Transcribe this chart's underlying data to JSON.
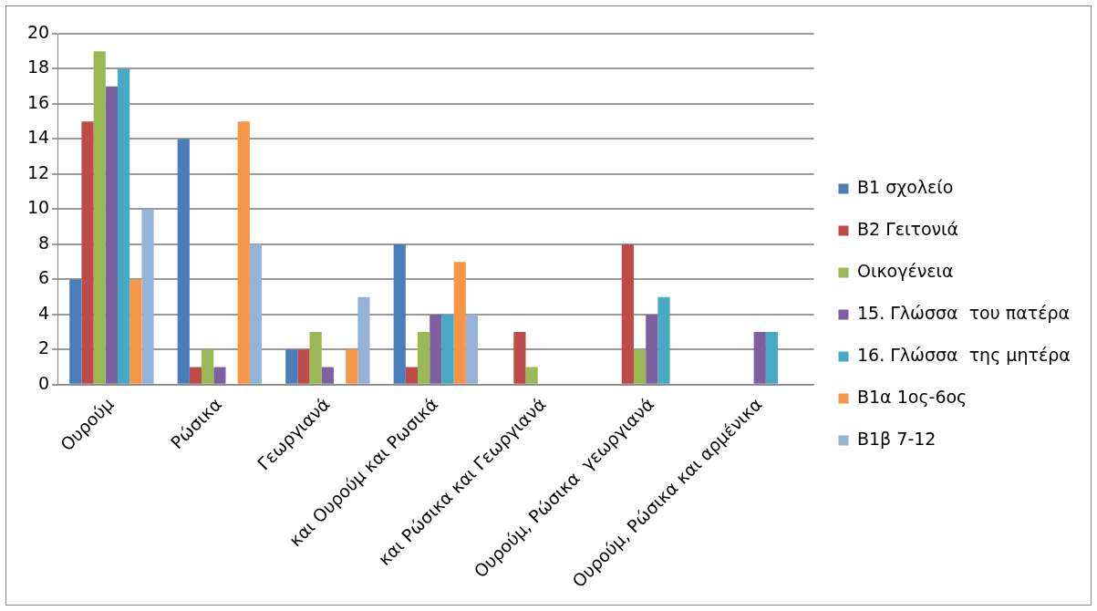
{
  "chart_data": {
    "type": "bar",
    "categories": [
      "Ουρούμ",
      "Ρώσικα",
      "Γεωργιανά",
      "και Ουρούμ και Ρωσικά",
      "και Ρώσικα και Γεωργιανά",
      "Ουρούμ, Ρώσικα  γεωργιανά",
      "Ουρούμ, Ρώσικα και αρμένικα"
    ],
    "series": [
      {
        "name": "Β1 σχολείο",
        "color": "#4a7ebb",
        "values": [
          6,
          14,
          2,
          8,
          0,
          0,
          0
        ]
      },
      {
        "name": "Β2 Γειτονιά",
        "color": "#be4b48",
        "values": [
          15,
          1,
          2,
          1,
          3,
          8,
          0
        ]
      },
      {
        "name": "Οικογένεια",
        "color": "#98b954",
        "values": [
          19,
          2,
          3,
          3,
          1,
          2,
          0
        ]
      },
      {
        "name": "15. Γλώσσα  του πατέρα",
        "color": "#7d60a0",
        "values": [
          17,
          1,
          1,
          4,
          0,
          4,
          3
        ]
      },
      {
        "name": "16. Γλώσσα  της μητέρα",
        "color": "#46aac5",
        "values": [
          18,
          0,
          0,
          4,
          0,
          5,
          3
        ]
      },
      {
        "name": "Β1α 1ος-6ος",
        "color": "#f79646",
        "values": [
          6,
          15,
          2,
          7,
          0,
          0,
          0
        ]
      },
      {
        "name": "Β1β 7-12",
        "color": "#95b3d7",
        "values": [
          10,
          8,
          5,
          4,
          0,
          0,
          0
        ]
      }
    ],
    "ylim": [
      0,
      20
    ],
    "yticks": [
      0,
      2,
      4,
      6,
      8,
      10,
      12,
      14,
      16,
      18,
      20
    ],
    "grid": "y",
    "legend": "right"
  }
}
